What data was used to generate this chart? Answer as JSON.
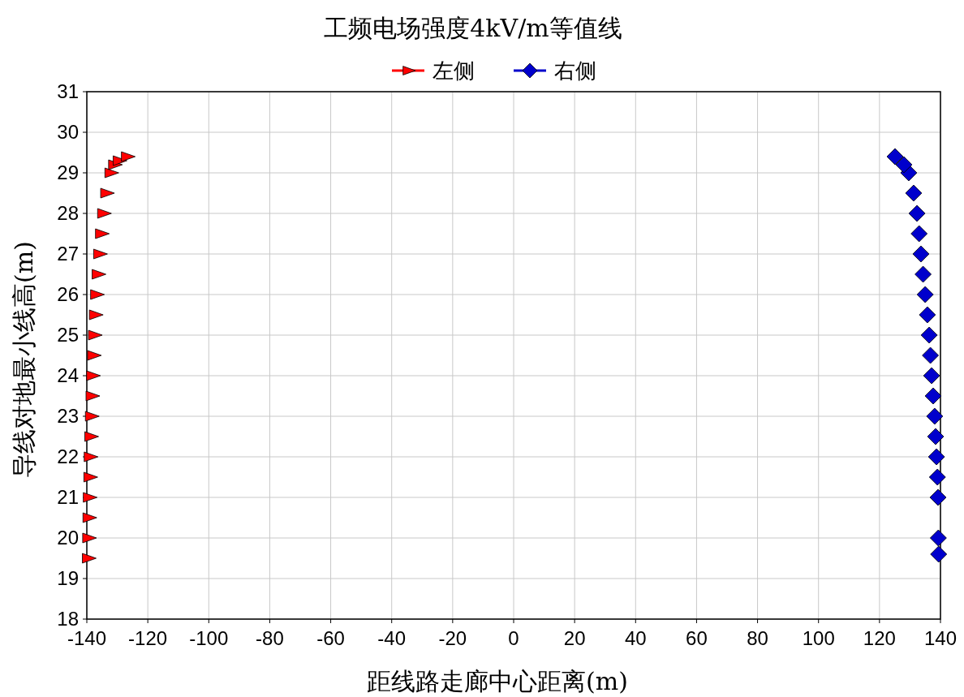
{
  "chart_data": {
    "type": "scatter",
    "title": "工频电场强度4kV/m等值线",
    "xlabel": "距线路走廊中心距离(m)",
    "ylabel": "导线对地最小线高(m)",
    "xlim": [
      -140,
      140
    ],
    "xticks": [
      -140,
      -120,
      -100,
      -80,
      -60,
      -40,
      -20,
      0,
      20,
      40,
      60,
      80,
      100,
      120,
      140
    ],
    "ylim": [
      18,
      31
    ],
    "yticks": [
      18,
      19,
      20,
      21,
      22,
      23,
      24,
      25,
      26,
      27,
      28,
      29,
      30,
      31
    ],
    "grid": true,
    "legend": "top",
    "series": [
      {
        "name": "左侧",
        "color": "#ff0000",
        "marker": "triangle",
        "x": [
          -139.6,
          -139.5,
          -139.4,
          -139.3,
          -139.1,
          -139.0,
          -138.8,
          -138.6,
          -138.4,
          -138.2,
          -137.9,
          -137.6,
          -137.3,
          -136.9,
          -136.4,
          -135.9,
          -135.3,
          -134.6,
          -133.6,
          -132.2,
          -131.0,
          -129.5,
          -126.8
        ],
        "values": [
          19.5,
          20,
          20.5,
          21,
          21.5,
          22,
          22.5,
          23,
          23.5,
          24,
          24.5,
          25,
          25.5,
          26,
          26.5,
          27,
          27.5,
          28,
          28.5,
          29,
          29.2,
          29.3,
          29.4
        ]
      },
      {
        "name": "右侧",
        "color": "#0000cc",
        "marker": "diamond",
        "x": [
          139.4,
          139.3,
          139.2,
          139.0,
          138.7,
          138.4,
          138.1,
          137.6,
          137.1,
          136.7,
          136.3,
          135.7,
          135.0,
          134.3,
          133.6,
          133.0,
          132.3,
          131.2,
          129.6,
          128.0,
          125.1
        ],
        "values": [
          19.6,
          20,
          21,
          21.5,
          22,
          22.5,
          23,
          23.5,
          24,
          24.5,
          25,
          25.5,
          26,
          26.5,
          27,
          27.5,
          28,
          28.5,
          29,
          29.2,
          29.4
        ]
      }
    ]
  }
}
